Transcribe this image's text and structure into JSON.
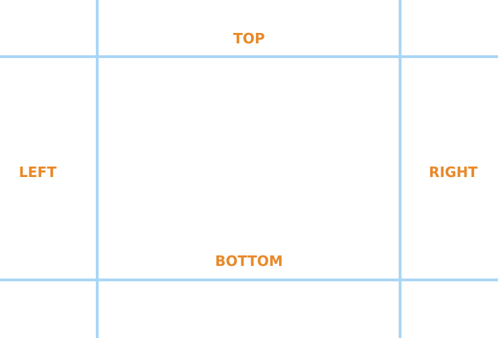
{
  "labels": {
    "top": "TOP",
    "bottom": "BOTTOM",
    "left": "LEFT",
    "right": "RIGHT"
  },
  "colors": {
    "label": "#e8892a",
    "grid_line": "#a9d6f5",
    "background": "#ffffff"
  }
}
